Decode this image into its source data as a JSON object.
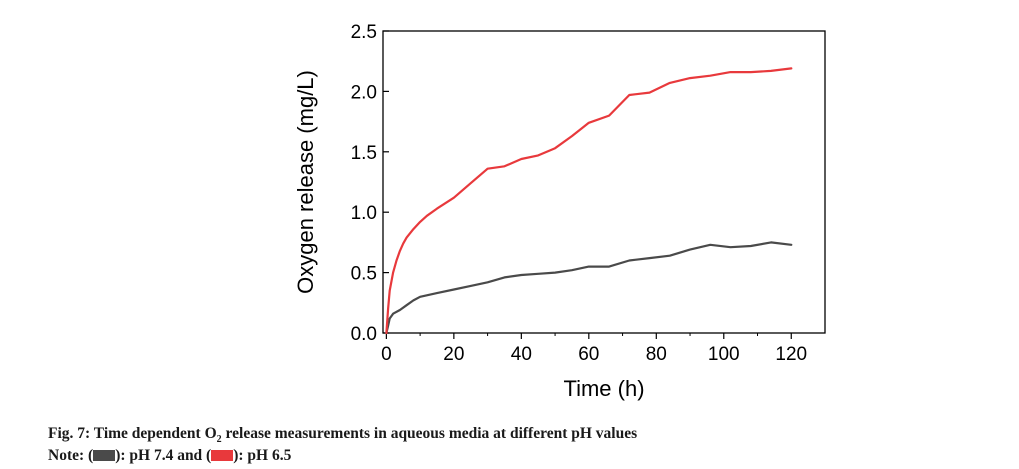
{
  "chart_data": {
    "type": "line",
    "xlabel": "Time (h)",
    "ylabel": "Oxygen release (mg/L)",
    "xlim": [
      -1,
      130
    ],
    "ylim": [
      0,
      2.5
    ],
    "xticks": [
      0,
      20,
      40,
      60,
      80,
      100,
      120
    ],
    "yticks": [
      0.0,
      0.5,
      1.0,
      1.5,
      2.0,
      2.5
    ],
    "xtick_labels": [
      "0",
      "20",
      "40",
      "60",
      "80",
      "100",
      "120"
    ],
    "ytick_labels": [
      "0.0",
      "0.5",
      "1.0",
      "1.5",
      "2.0",
      "2.5"
    ],
    "grid": false,
    "series": [
      {
        "color": "#4a4a4a",
        "x": [
          0,
          0.5,
          1,
          2,
          4,
          6,
          8,
          10,
          15,
          20,
          25,
          30,
          35,
          40,
          45,
          50,
          55,
          60,
          66,
          72,
          78,
          84,
          90,
          96,
          102,
          108,
          114,
          120
        ],
        "y": [
          0,
          0.06,
          0.12,
          0.16,
          0.19,
          0.23,
          0.27,
          0.3,
          0.33,
          0.36,
          0.39,
          0.42,
          0.46,
          0.48,
          0.49,
          0.5,
          0.52,
          0.55,
          0.55,
          0.6,
          0.62,
          0.64,
          0.69,
          0.73,
          0.71,
          0.72,
          0.75,
          0.73
        ]
      },
      {
        "color": "#e8393c",
        "x": [
          0,
          0.5,
          1,
          2,
          3,
          4,
          5,
          6,
          8,
          10,
          12,
          15,
          20,
          25,
          30,
          35,
          40,
          45,
          50,
          55,
          60,
          66,
          72,
          78,
          84,
          90,
          96,
          102,
          108,
          114,
          120
        ],
        "y": [
          0,
          0.2,
          0.35,
          0.5,
          0.6,
          0.68,
          0.74,
          0.79,
          0.86,
          0.92,
          0.97,
          1.03,
          1.12,
          1.24,
          1.36,
          1.38,
          1.44,
          1.47,
          1.53,
          1.63,
          1.74,
          1.8,
          1.97,
          1.99,
          2.07,
          2.11,
          2.13,
          2.16,
          2.16,
          2.17,
          2.19
        ]
      }
    ]
  },
  "caption": {
    "line1_pre": "Fig. 7: Time dependent O",
    "line1_sub": "2",
    "line1_post": " release measurements in aqueous media at different pH values",
    "note_prefix": "Note: (",
    "note_series1": "): pH 7.4 and (",
    "note_series2": "): pH 6.5"
  }
}
